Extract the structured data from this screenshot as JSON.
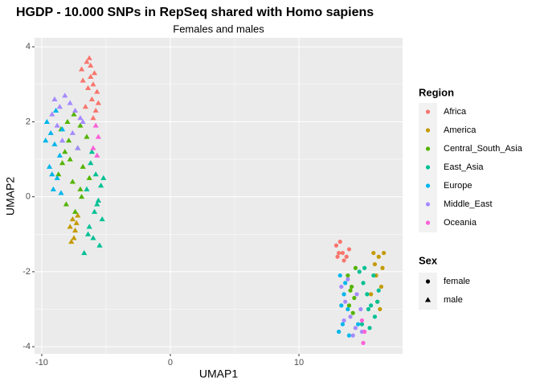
{
  "chart_data": {
    "type": "scatter",
    "title": "HGDP - 10.000 SNPs in RepSeq shared with Homo sapiens",
    "subtitle": "Females and males",
    "x_label": "UMAP1",
    "y_label": "UMAP2",
    "xlim": [
      -10.56,
      18.06
    ],
    "ylim": [
      -4.19,
      4.24
    ],
    "xticks": [
      -10,
      0,
      10
    ],
    "yticks": [
      -4,
      -2,
      0,
      2,
      4
    ],
    "grid": true,
    "legend_title": "Region",
    "shape_legend_title": "Sex",
    "shapes": [
      {
        "name": "female",
        "shape": "circle"
      },
      {
        "name": "male",
        "shape": "triangle"
      }
    ],
    "series": [
      {
        "name": "Africa",
        "color": "#F8766D",
        "female": {
          "x": [
            12.9,
            13.2,
            13.4,
            13.0,
            13.7,
            13.9,
            13.5,
            13.1
          ],
          "y": [
            -1.3,
            -1.2,
            -1.5,
            -1.6,
            -1.6,
            -1.4,
            -1.7,
            -1.5
          ]
        },
        "male": {
          "x": [
            -6.5,
            -6.2,
            -5.9,
            -6.8,
            -6.0,
            -5.7,
            -6.4,
            -6.1,
            -6.6,
            -5.8,
            -6.3,
            -6.9,
            -6.0,
            -5.6,
            -6.2
          ],
          "y": [
            3.6,
            3.5,
            3.3,
            3.1,
            3.0,
            2.8,
            2.9,
            2.6,
            2.4,
            2.3,
            3.7,
            3.4,
            2.1,
            2.5,
            3.2
          ]
        }
      },
      {
        "name": "America",
        "color": "#C49A00",
        "female": {
          "x": [
            15.8,
            16.2,
            16.5,
            16.0,
            16.4,
            15.6,
            16.6,
            16.1,
            15.9,
            16.3
          ],
          "y": [
            -1.5,
            -1.6,
            -1.9,
            -2.1,
            -2.4,
            -2.6,
            -1.5,
            -2.8,
            -1.8,
            -3.0
          ]
        },
        "male": {
          "x": [
            -7.6,
            -7.4,
            -7.8,
            -7.2,
            -7.5,
            -7.7,
            -7.3
          ],
          "y": [
            -0.6,
            -0.9,
            -0.8,
            -0.5,
            -1.1,
            -1.2,
            -0.7
          ]
        }
      },
      {
        "name": "Central_South_Asia",
        "color": "#53B400",
        "female": {
          "x": [
            13.8,
            14.1,
            14.3,
            13.9,
            14.2,
            14.0,
            14.4
          ],
          "y": [
            -2.1,
            -2.4,
            -2.7,
            -2.9,
            -3.1,
            -2.5,
            -1.9
          ]
        },
        "male": {
          "x": [
            -8.5,
            -8.0,
            -7.5,
            -7.0,
            -6.5,
            -8.2,
            -7.8,
            -7.2,
            -6.8,
            -8.7,
            -7.6,
            -7.0,
            -6.3,
            -8.1,
            -7.4,
            -6.9,
            -7.9,
            -8.4
          ],
          "y": [
            1.8,
            2.0,
            2.2,
            1.9,
            1.6,
            1.2,
            1.0,
            1.3,
            0.8,
            0.6,
            0.4,
            0.2,
            0.5,
            -0.2,
            -0.4,
            0.0,
            1.5,
            0.9
          ]
        }
      },
      {
        "name": "East_Asia",
        "color": "#00C094",
        "female": {
          "x": [
            14.7,
            15.0,
            15.3,
            15.6,
            15.9,
            16.2,
            14.9,
            15.4,
            15.8,
            16.1,
            15.1,
            15.5
          ],
          "y": [
            -2.0,
            -2.3,
            -2.6,
            -2.9,
            -3.2,
            -2.5,
            -3.4,
            -3.0,
            -2.1,
            -2.8,
            -1.9,
            -3.5
          ]
        },
        "male": {
          "x": [
            -6.2,
            -5.8,
            -5.4,
            -6.5,
            -5.6,
            -5.9,
            -5.3,
            -6.3,
            -6.0,
            -5.5,
            -6.7,
            -5.7,
            -5.2,
            -6.1,
            -6.4
          ],
          "y": [
            0.9,
            0.6,
            0.3,
            0.2,
            -0.1,
            -0.4,
            -0.6,
            -0.8,
            -1.1,
            -1.3,
            -1.5,
            -0.2,
            0.5,
            1.2,
            -1.0
          ]
        }
      },
      {
        "name": "Europe",
        "color": "#00B6EB",
        "female": {
          "x": [
            13.2,
            13.5,
            13.8,
            13.4,
            13.1,
            13.6,
            13.9,
            13.3,
            14.6
          ],
          "y": [
            -2.1,
            -2.6,
            -3.0,
            -3.4,
            -3.6,
            -2.3,
            -3.7,
            -2.9,
            -3.4
          ]
        },
        "male": {
          "x": [
            -9.6,
            -9.3,
            -9.0,
            -8.6,
            -9.4,
            -8.8,
            -9.1,
            -8.4,
            -9.7,
            -8.9,
            -9.2,
            -8.5
          ],
          "y": [
            2.0,
            1.7,
            1.4,
            1.1,
            0.8,
            0.5,
            0.2,
            1.8,
            1.5,
            2.3,
            0.6,
            0.1
          ]
        }
      },
      {
        "name": "Middle_East",
        "color": "#A58AFF",
        "female": {
          "x": [
            13.3,
            13.6,
            14.0,
            14.4,
            14.8,
            13.5,
            13.8,
            14.5,
            14.9,
            14.2
          ],
          "y": [
            -2.4,
            -2.8,
            -3.2,
            -3.5,
            -3.0,
            -3.3,
            -2.2,
            -2.6,
            -3.6,
            -3.7
          ]
        },
        "male": {
          "x": [
            -9.0,
            -8.6,
            -8.2,
            -7.8,
            -7.4,
            -7.0,
            -8.8,
            -8.4,
            -7.6,
            -7.2,
            -6.8,
            -9.2
          ],
          "y": [
            2.6,
            2.4,
            2.7,
            2.5,
            2.3,
            2.1,
            1.9,
            1.5,
            1.7,
            1.3,
            2.0,
            2.2
          ]
        }
      },
      {
        "name": "Oceania",
        "color": "#FB61D7",
        "female": {
          "x": [
            14.9,
            15.1,
            15.0
          ],
          "y": [
            -3.3,
            -3.6,
            -3.9
          ]
        },
        "male": {
          "x": [
            -5.8,
            -5.6,
            -6.0,
            -5.7
          ],
          "y": [
            1.9,
            1.6,
            1.3,
            1.1
          ]
        }
      }
    ]
  }
}
